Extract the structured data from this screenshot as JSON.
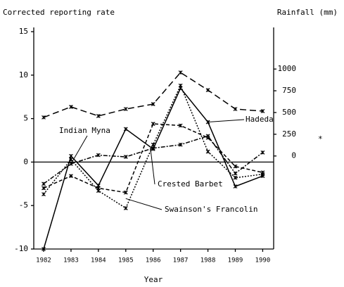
{
  "chart_data": {
    "type": "line",
    "y_label": "Corrected reporting rate",
    "y2_label": "Rainfall (mm)",
    "x_label": "Year",
    "x": [
      1982,
      1983,
      1984,
      1985,
      1986,
      1987,
      1988,
      1989,
      1990
    ],
    "xlim": [
      1981.64,
      1990.4
    ],
    "xticks": [
      1982,
      1983,
      1984,
      1985,
      1986,
      1987,
      1988,
      1989,
      1990
    ],
    "ylim": [
      -10,
      15
    ],
    "yticks": [
      -10,
      -5,
      0,
      5,
      10,
      15
    ],
    "y2lim": [
      -1070,
      1430
    ],
    "y2ticks": [
      0,
      250,
      500,
      750,
      1000
    ],
    "annotations": [
      "*"
    ],
    "series": [
      {
        "name": "Hadeda",
        "color": "#000000",
        "dash": "solid",
        "values": [
          -10,
          0.7,
          -2.7,
          3.8,
          1.5,
          8.5,
          4.6,
          -2.8,
          -1.6
        ]
      },
      {
        "name": "Indian Myna",
        "color": "#000000",
        "dash": "dashdot",
        "values": [
          -2.5,
          -0.2,
          0.8,
          0.6,
          1.6,
          2.0,
          3.0,
          -1.3,
          1.1
        ]
      },
      {
        "name": "Crested Barbet",
        "color": "#000000",
        "dash": "dashed",
        "values": [
          -3.0,
          -1.6,
          -3.0,
          -3.5,
          4.4,
          4.2,
          2.8,
          -0.5,
          -1.2
        ]
      },
      {
        "name": "Swainson's Francolin",
        "color": "#000000",
        "dash": "dotted",
        "values": [
          -3.7,
          0.3,
          -3.3,
          -5.3,
          2.0,
          8.8,
          1.2,
          -1.8,
          -1.4
        ]
      },
      {
        "name": "Rainfall (mm)",
        "color": "#000000",
        "dash": "longdash",
        "axis": "y2",
        "values": [
          444,
          565,
          460,
          540,
          597,
          960,
          758,
          540,
          516
        ]
      }
    ]
  }
}
